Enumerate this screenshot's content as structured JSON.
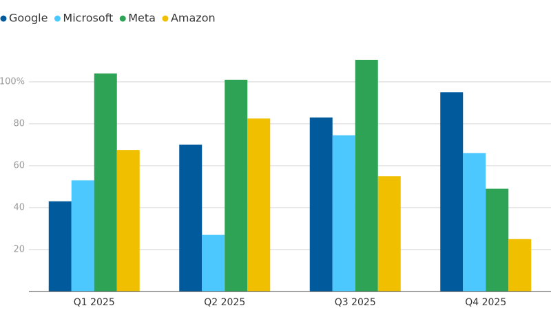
{
  "chart_data": {
    "type": "bar",
    "categories": [
      "Q1 2025",
      "Q2 2025",
      "Q3 2025",
      "Q4 2025"
    ],
    "series": [
      {
        "name": "Google",
        "color": "#005a9c",
        "values": [
          43,
          70,
          83,
          95
        ]
      },
      {
        "name": "Microsoft",
        "color": "#4dc8ff",
        "values": [
          53,
          27,
          74.5,
          66
        ]
      },
      {
        "name": "Meta",
        "color": "#2ea355",
        "values": [
          104,
          101,
          110.5,
          49
        ]
      },
      {
        "name": "Amazon",
        "color": "#f0c000",
        "values": [
          67.5,
          82.5,
          55,
          25
        ]
      }
    ],
    "ylim": [
      0,
      115
    ],
    "yticks": [
      20,
      40,
      60,
      80,
      {
        "value": 100,
        "label": "100%"
      }
    ],
    "grid": true,
    "legend": "top-left"
  }
}
